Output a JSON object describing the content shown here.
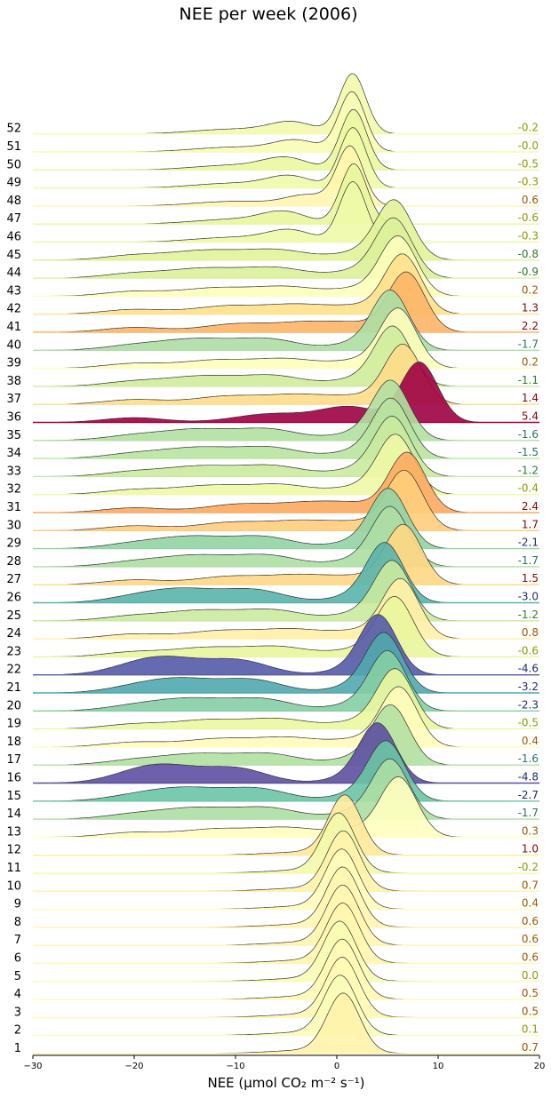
{
  "chart_data": {
    "type": "ridgeline",
    "title": "NEE per week (2006)",
    "xlabel": "NEE (μmol CO₂ m⁻² s⁻¹)",
    "xlim": [
      -30,
      20
    ],
    "xticks": [
      "−30",
      "−20",
      "−10",
      "0",
      "10",
      "20"
    ],
    "colormap": "Spectral, colored by weekly mean NEE",
    "weeks": [
      {
        "week": "1",
        "mean": "0.7"
      },
      {
        "week": "2",
        "mean": "0.1"
      },
      {
        "week": "3",
        "mean": "0.5"
      },
      {
        "week": "4",
        "mean": "0.5"
      },
      {
        "week": "5",
        "mean": "0.0"
      },
      {
        "week": "6",
        "mean": "0.6"
      },
      {
        "week": "7",
        "mean": "0.6"
      },
      {
        "week": "8",
        "mean": "0.6"
      },
      {
        "week": "9",
        "mean": "0.4"
      },
      {
        "week": "10",
        "mean": "0.7"
      },
      {
        "week": "11",
        "mean": "-0.2"
      },
      {
        "week": "12",
        "mean": "1.0"
      },
      {
        "week": "13",
        "mean": "0.3"
      },
      {
        "week": "14",
        "mean": "-1.7"
      },
      {
        "week": "15",
        "mean": "-2.7"
      },
      {
        "week": "16",
        "mean": "-4.8"
      },
      {
        "week": "17",
        "mean": "-1.6"
      },
      {
        "week": "18",
        "mean": "0.4"
      },
      {
        "week": "19",
        "mean": "-0.5"
      },
      {
        "week": "20",
        "mean": "-2.3"
      },
      {
        "week": "21",
        "mean": "-3.2"
      },
      {
        "week": "22",
        "mean": "-4.6"
      },
      {
        "week": "23",
        "mean": "-0.6"
      },
      {
        "week": "24",
        "mean": "0.8"
      },
      {
        "week": "25",
        "mean": "-1.2"
      },
      {
        "week": "26",
        "mean": "-3.0"
      },
      {
        "week": "27",
        "mean": "1.5"
      },
      {
        "week": "28",
        "mean": "-1.7"
      },
      {
        "week": "29",
        "mean": "-2.1"
      },
      {
        "week": "30",
        "mean": "1.7"
      },
      {
        "week": "31",
        "mean": "2.4"
      },
      {
        "week": "32",
        "mean": "-0.4"
      },
      {
        "week": "33",
        "mean": "-1.2"
      },
      {
        "week": "34",
        "mean": "-1.5"
      },
      {
        "week": "35",
        "mean": "-1.6"
      },
      {
        "week": "36",
        "mean": "5.4"
      },
      {
        "week": "37",
        "mean": "1.4"
      },
      {
        "week": "38",
        "mean": "-1.1"
      },
      {
        "week": "39",
        "mean": "0.2"
      },
      {
        "week": "40",
        "mean": "-1.7"
      },
      {
        "week": "41",
        "mean": "2.2"
      },
      {
        "week": "42",
        "mean": "1.3"
      },
      {
        "week": "43",
        "mean": "0.2"
      },
      {
        "week": "44",
        "mean": "-0.9"
      },
      {
        "week": "45",
        "mean": "-0.8"
      },
      {
        "week": "46",
        "mean": "-0.3"
      },
      {
        "week": "47",
        "mean": "-0.6"
      },
      {
        "week": "48",
        "mean": "0.6"
      },
      {
        "week": "49",
        "mean": "-0.3"
      },
      {
        "week": "50",
        "mean": "-0.5"
      },
      {
        "week": "51",
        "mean": "-0.0"
      },
      {
        "week": "52",
        "mean": "-0.2"
      }
    ]
  }
}
